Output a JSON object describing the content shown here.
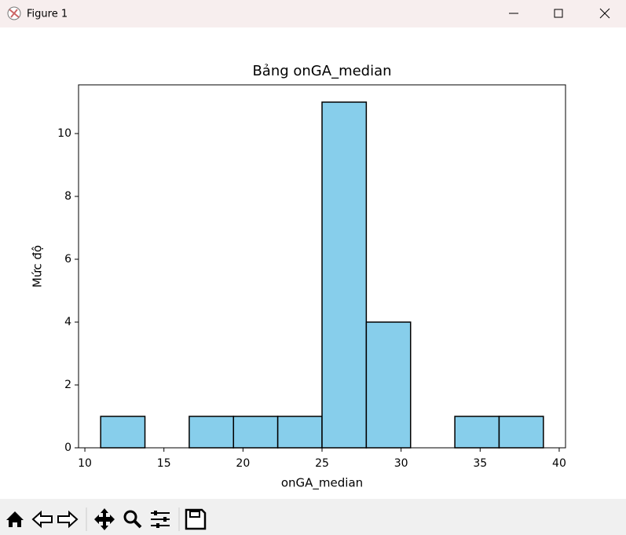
{
  "window_title": "Figure 1",
  "chart_data": {
    "type": "histogram",
    "title": "Bảng onGA_median",
    "xlabel": "onGA_median",
    "ylabel": "Mức độ",
    "bins": [
      11,
      13.8,
      16.6,
      19.4,
      22.2,
      25,
      27.8,
      30.6,
      33.4,
      36.2,
      39
    ],
    "counts": [
      1,
      0,
      1,
      1,
      1,
      11,
      4,
      0,
      1,
      1
    ],
    "color": "#87ceeb",
    "edgecolor": "#000000",
    "xlim": [
      9.6,
      40.4
    ],
    "xticks": [
      10,
      15,
      20,
      25,
      30,
      35,
      40
    ],
    "ylim": [
      0,
      11.55
    ],
    "yticks": [
      0,
      2,
      4,
      6,
      8,
      10
    ]
  }
}
